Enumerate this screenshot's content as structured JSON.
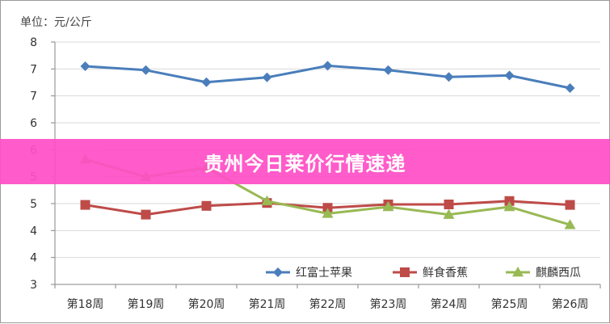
{
  "banner": {
    "text": "贵州今日莱价行情速递"
  },
  "colors": {
    "series_apple": "#4a7ebb",
    "series_banana": "#be4b48",
    "series_melon": "#98b954",
    "banner": "#ff4fc6",
    "grid": "#d9d9d9",
    "axis": "#868686"
  },
  "chart_data": {
    "type": "line",
    "unit_label": "单位：元/公斤",
    "categories": [
      "第18周",
      "第19周",
      "第20周",
      "第21周",
      "第22周",
      "第23周",
      "第24周",
      "第25周",
      "第26周"
    ],
    "y_tick_labels": [
      "3",
      "4",
      "4",
      "5",
      "5",
      "6",
      "6",
      "7",
      "7",
      "8"
    ],
    "ylim": [
      3,
      8
    ],
    "grid": true,
    "legend_position": "bottom-right",
    "series": [
      {
        "name": "红富士苹果",
        "marker": "diamond",
        "color": "#4a7ebb",
        "values": [
          7.5,
          7.42,
          7.17,
          7.27,
          7.51,
          7.42,
          7.28,
          7.31,
          7.05
        ]
      },
      {
        "name": "鲜食香蕉",
        "marker": "square",
        "color": "#be4b48",
        "values": [
          4.64,
          4.44,
          4.62,
          4.68,
          4.58,
          4.65,
          4.65,
          4.72,
          4.64
        ]
      },
      {
        "name": "麒麟西瓜",
        "marker": "triangle",
        "color": "#98b954",
        "values": [
          5.58,
          5.22,
          5.41,
          4.72,
          4.46,
          4.6,
          4.44,
          4.6,
          4.23
        ]
      }
    ]
  }
}
